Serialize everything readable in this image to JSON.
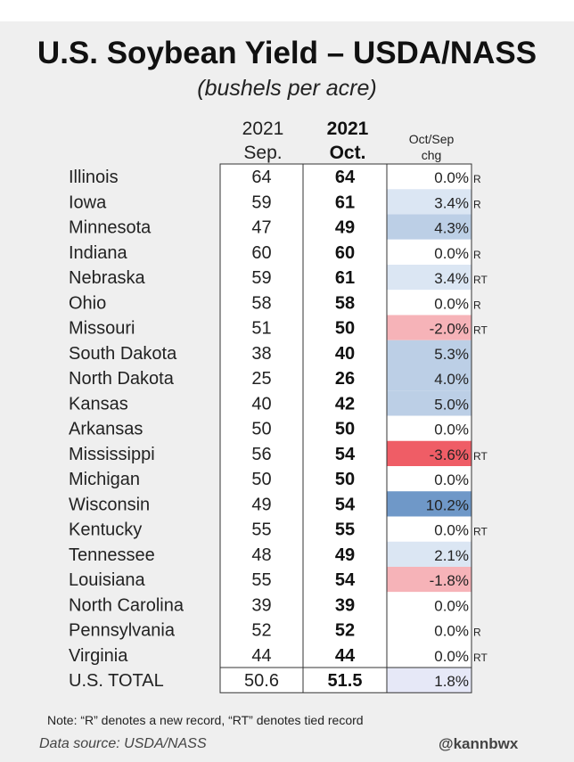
{
  "header": {
    "title": "U.S. Soybean Yield – USDA/NASS",
    "subtitle": "(bushels per acre)",
    "col_sep_line1": "2021",
    "col_sep_line2": "Sep.",
    "col_oct_line1": "2021",
    "col_oct_line2": "Oct.",
    "col_chg_line1": "Oct/Sep",
    "col_chg_line2": "chg"
  },
  "footer": {
    "note": "Note: “R” denotes a new record, “RT” denotes tied record",
    "source": "Data source: USDA/NASS",
    "handle": "@kannbwx"
  },
  "colors": {
    "positive_light": "#dbe6f3",
    "positive_mid": "#bccfe6",
    "positive_strong": "#6f98c8",
    "negative_light": "#f6b3b8",
    "negative_strong": "#ef5d66",
    "total_fill": "#e6e8f7",
    "neutral": "#ffffff"
  },
  "chart_data": {
    "type": "table",
    "title": "U.S. Soybean Yield – USDA/NASS",
    "subtitle": "(bushels per acre)",
    "columns": [
      "",
      "2021 Sep.",
      "2021 Oct.",
      "Oct/Sep chg"
    ],
    "rows": [
      {
        "state": "Illinois",
        "sep": "64",
        "oct": "64",
        "chg": "0.0%",
        "chg_value": 0.0,
        "flag": "R"
      },
      {
        "state": "Iowa",
        "sep": "59",
        "oct": "61",
        "chg": "3.4%",
        "chg_value": 3.4,
        "flag": "R"
      },
      {
        "state": "Minnesota",
        "sep": "47",
        "oct": "49",
        "chg": "4.3%",
        "chg_value": 4.3,
        "flag": ""
      },
      {
        "state": "Indiana",
        "sep": "60",
        "oct": "60",
        "chg": "0.0%",
        "chg_value": 0.0,
        "flag": "R"
      },
      {
        "state": "Nebraska",
        "sep": "59",
        "oct": "61",
        "chg": "3.4%",
        "chg_value": 3.4,
        "flag": "RT"
      },
      {
        "state": "Ohio",
        "sep": "58",
        "oct": "58",
        "chg": "0.0%",
        "chg_value": 0.0,
        "flag": "R"
      },
      {
        "state": "Missouri",
        "sep": "51",
        "oct": "50",
        "chg": "-2.0%",
        "chg_value": -2.0,
        "flag": "RT"
      },
      {
        "state": "South Dakota",
        "sep": "38",
        "oct": "40",
        "chg": "5.3%",
        "chg_value": 5.3,
        "flag": ""
      },
      {
        "state": "North Dakota",
        "sep": "25",
        "oct": "26",
        "chg": "4.0%",
        "chg_value": 4.0,
        "flag": ""
      },
      {
        "state": "Kansas",
        "sep": "40",
        "oct": "42",
        "chg": "5.0%",
        "chg_value": 5.0,
        "flag": ""
      },
      {
        "state": "Arkansas",
        "sep": "50",
        "oct": "50",
        "chg": "0.0%",
        "chg_value": 0.0,
        "flag": ""
      },
      {
        "state": "Mississippi",
        "sep": "56",
        "oct": "54",
        "chg": "-3.6%",
        "chg_value": -3.6,
        "flag": "RT"
      },
      {
        "state": "Michigan",
        "sep": "50",
        "oct": "50",
        "chg": "0.0%",
        "chg_value": 0.0,
        "flag": ""
      },
      {
        "state": "Wisconsin",
        "sep": "49",
        "oct": "54",
        "chg": "10.2%",
        "chg_value": 10.2,
        "flag": ""
      },
      {
        "state": "Kentucky",
        "sep": "55",
        "oct": "55",
        "chg": "0.0%",
        "chg_value": 0.0,
        "flag": "RT"
      },
      {
        "state": "Tennessee",
        "sep": "48",
        "oct": "49",
        "chg": "2.1%",
        "chg_value": 2.1,
        "flag": ""
      },
      {
        "state": "Louisiana",
        "sep": "55",
        "oct": "54",
        "chg": "-1.8%",
        "chg_value": -1.8,
        "flag": ""
      },
      {
        "state": "North Carolina",
        "sep": "39",
        "oct": "39",
        "chg": "0.0%",
        "chg_value": 0.0,
        "flag": ""
      },
      {
        "state": "Pennsylvania",
        "sep": "52",
        "oct": "52",
        "chg": "0.0%",
        "chg_value": 0.0,
        "flag": "R"
      },
      {
        "state": "Virginia",
        "sep": "44",
        "oct": "44",
        "chg": "0.0%",
        "chg_value": 0.0,
        "flag": "RT"
      }
    ],
    "total": {
      "state": "U.S. TOTAL",
      "sep": "50.6",
      "oct": "51.5",
      "chg": "1.8%",
      "chg_value": 1.8,
      "flag": ""
    }
  }
}
